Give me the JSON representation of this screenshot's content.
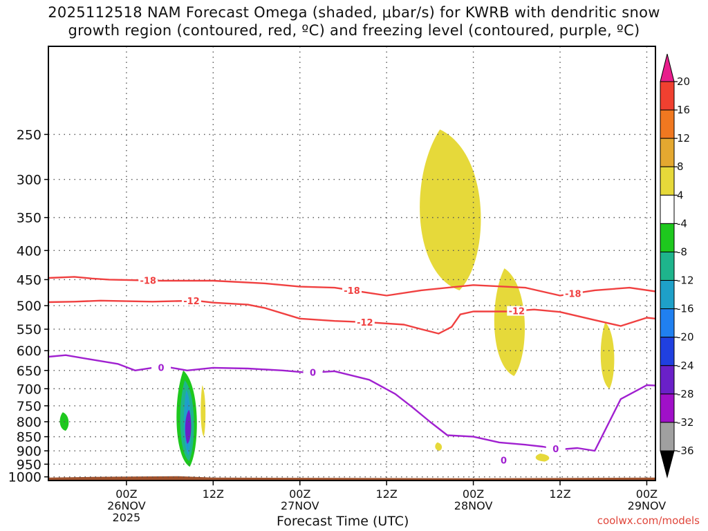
{
  "chart_data": {
    "type": "heatmap",
    "title_line1": "2025112518 NAM Forecast Omega (shaded, μbar/s) for KWRB with dendritic snow",
    "title_line2": "growth region (contoured, red, ºC) and freezing level (contoured, purple, ºC)",
    "xlabel": "Forecast Time (UTC)",
    "ylabel": "",
    "credit": "coolwx.com/models",
    "x_range_hours": [
      -9,
      61
    ],
    "y_range_hPa": [
      175,
      1015
    ],
    "y_scale": "log-pressure",
    "y_ticks": [
      250,
      300,
      350,
      400,
      450,
      500,
      550,
      600,
      650,
      700,
      750,
      800,
      850,
      900,
      950,
      1000
    ],
    "x_ticks": [
      {
        "hour": 0,
        "label": "00Z",
        "sub1": "26NOV",
        "sub2": "2025"
      },
      {
        "hour": 10,
        "label": "12Z",
        "sub1": "",
        "sub2": ""
      },
      {
        "hour": 20,
        "label": "00Z",
        "sub1": "27NOV",
        "sub2": ""
      },
      {
        "hour": 30,
        "label": "12Z",
        "sub1": "",
        "sub2": ""
      },
      {
        "hour": 40,
        "label": "00Z",
        "sub1": "28NOV",
        "sub2": ""
      },
      {
        "hour": 50,
        "label": "12Z",
        "sub1": "",
        "sub2": ""
      },
      {
        "hour": 60,
        "label": "00Z",
        "sub1": "29NOV",
        "sub2": ""
      }
    ],
    "colorbar": {
      "levels": [
        "20",
        "16",
        "12",
        "8",
        "4",
        "-4",
        "-8",
        "-12",
        "-16",
        "-20",
        "-24",
        "-28",
        "-32",
        "-36"
      ],
      "colors": [
        "#e81e8c",
        "#f04030",
        "#f07820",
        "#e4a830",
        "#e6d93a",
        "#ffffff",
        "#1ec81e",
        "#1eb48c",
        "#1ea0c8",
        "#2080f0",
        "#2040e0",
        "#6a20c8",
        "#a010c8",
        "#a0a0a0",
        "#000000"
      ]
    },
    "series": [
      {
        "name": "-18 C isotherm",
        "color": "#f04040",
        "label": "-18",
        "points": [
          [
            -9,
            447
          ],
          [
            -6,
            445
          ],
          [
            -4,
            448
          ],
          [
            -2,
            450
          ],
          [
            4,
            452
          ],
          [
            10,
            452
          ],
          [
            16,
            457
          ],
          [
            20,
            463
          ],
          [
            24,
            465
          ],
          [
            30,
            480
          ],
          [
            34,
            470
          ],
          [
            40,
            460
          ],
          [
            46,
            465
          ],
          [
            50,
            480
          ],
          [
            54,
            470
          ],
          [
            58,
            465
          ],
          [
            61,
            472
          ]
        ],
        "label_hours": [
          2.5,
          26,
          51.5
        ]
      },
      {
        "name": "-12 C isotherm",
        "color": "#f04040",
        "label": "-12",
        "points": [
          [
            -9,
            493
          ],
          [
            -6,
            492
          ],
          [
            -3,
            490
          ],
          [
            3,
            492
          ],
          [
            8,
            490
          ],
          [
            10,
            494
          ],
          [
            14,
            498
          ],
          [
            16,
            505
          ],
          [
            20,
            527
          ],
          [
            24,
            532
          ],
          [
            28,
            535
          ],
          [
            32,
            540
          ],
          [
            34,
            550
          ],
          [
            36,
            560
          ],
          [
            37.5,
            545
          ],
          [
            38.5,
            518
          ],
          [
            40,
            512
          ],
          [
            44,
            512
          ],
          [
            47,
            508
          ],
          [
            50,
            513
          ],
          [
            54,
            530
          ],
          [
            57,
            543
          ],
          [
            60,
            525
          ],
          [
            61,
            527
          ]
        ],
        "label_hours": [
          7.5,
          27.5,
          45
        ]
      },
      {
        "name": "0 C freezing level",
        "color": "#a020d0",
        "label": "0",
        "points": [
          [
            -9,
            615
          ],
          [
            -7,
            611
          ],
          [
            -4,
            622
          ],
          [
            -1,
            633
          ],
          [
            1,
            650
          ],
          [
            3,
            643
          ],
          [
            5,
            642
          ],
          [
            7,
            650
          ],
          [
            10,
            643
          ],
          [
            14,
            645
          ],
          [
            18,
            650
          ],
          [
            21,
            656
          ],
          [
            24,
            652
          ],
          [
            28,
            675
          ],
          [
            31,
            715
          ],
          [
            33,
            755
          ],
          [
            35,
            800
          ],
          [
            37,
            845
          ],
          [
            40,
            850
          ],
          [
            43,
            870
          ],
          [
            46,
            878
          ],
          [
            48,
            885
          ],
          [
            50,
            895
          ],
          [
            52,
            890
          ],
          [
            54,
            900
          ],
          [
            57,
            730
          ],
          [
            60,
            690
          ],
          [
            61,
            691
          ]
        ],
        "label_hours": [
          4,
          21.5,
          49.5,
          43.5
        ]
      }
    ],
    "omega_regions": [
      {
        "sign": "positive",
        "range_ubar_s": [
          4,
          8
        ],
        "hours": [
          33,
          42
        ],
        "pressure": [
          245,
          470
        ]
      },
      {
        "sign": "positive",
        "range_ubar_s": [
          4,
          8
        ],
        "hours": [
          42,
          46.5
        ],
        "pressure": [
          430,
          665
        ]
      },
      {
        "sign": "positive",
        "range_ubar_s": [
          4,
          8
        ],
        "hours": [
          54.5,
          56.5
        ],
        "pressure": [
          535,
          700
        ]
      },
      {
        "sign": "negative",
        "range_ubar_s": [
          -36,
          -4
        ],
        "hours": [
          5.5,
          8.5
        ],
        "pressure": [
          650,
          960
        ]
      },
      {
        "sign": "positive",
        "range_ubar_s": [
          4,
          8
        ],
        "hours": [
          8.5,
          9.2
        ],
        "pressure": [
          690,
          850
        ]
      },
      {
        "sign": "positive",
        "range_ubar_s": [
          4,
          8
        ],
        "hours": [
          35.5,
          36.5
        ],
        "pressure": [
          870,
          900
        ]
      },
      {
        "sign": "positive",
        "range_ubar_s": [
          4,
          8
        ],
        "hours": [
          47,
          49
        ],
        "pressure": [
          910,
          940
        ]
      }
    ]
  }
}
